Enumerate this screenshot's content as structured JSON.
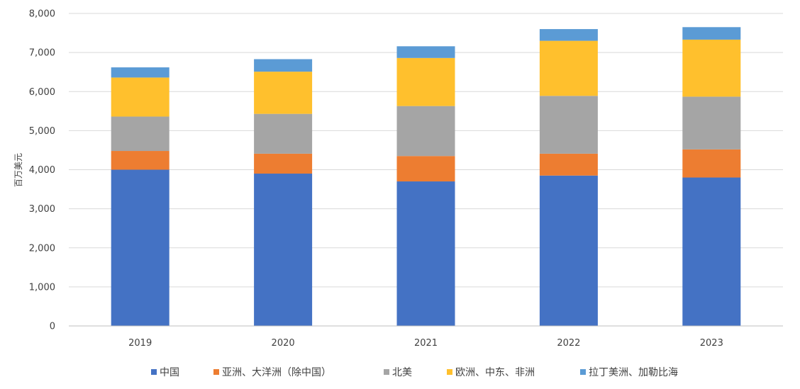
{
  "chart_data": {
    "type": "bar",
    "stacked": true,
    "title": "",
    "xlabel": "",
    "ylabel": "百万美元",
    "ylim": [
      0,
      8000
    ],
    "yticks": [
      0,
      1000,
      2000,
      3000,
      4000,
      5000,
      6000,
      7000,
      8000
    ],
    "ytick_labels": [
      "0",
      "1,000",
      "2,000",
      "3,000",
      "4,000",
      "5,000",
      "6,000",
      "7,000",
      "8,000"
    ],
    "grid": true,
    "legend_position": "bottom",
    "categories": [
      "2019",
      "2020",
      "2021",
      "2022",
      "2023"
    ],
    "series": [
      {
        "name": "中国",
        "color": "#4472C4",
        "values": [
          4000,
          3900,
          3700,
          3850,
          3800
        ]
      },
      {
        "name": "亚洲、大洋洲（除中国）",
        "color": "#ED7D31",
        "values": [
          480,
          510,
          650,
          560,
          720
        ]
      },
      {
        "name": "北美",
        "color": "#A5A5A5",
        "values": [
          880,
          1020,
          1280,
          1480,
          1350
        ]
      },
      {
        "name": "欧洲、中东、非洲",
        "color": "#FFC02D",
        "values": [
          1000,
          1080,
          1230,
          1410,
          1460
        ]
      },
      {
        "name": "拉丁美洲、加勒比海",
        "color": "#5B9BD5",
        "values": [
          260,
          320,
          300,
          300,
          320
        ]
      }
    ]
  }
}
